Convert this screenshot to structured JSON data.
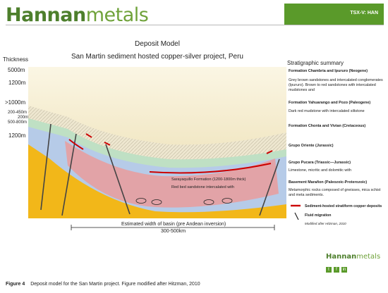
{
  "header": {
    "logo_part1": "Hannan",
    "logo_part2": "metals",
    "ticker": "TSX-V: HAN"
  },
  "titles": {
    "title": "Deposit Model",
    "subtitle": "San Martin sediment hosted copper-silver project, Peru"
  },
  "thickness": {
    "heading": "Thickness",
    "labels": [
      "5000m",
      "1200m",
      ">1000m",
      "200-450m",
      "200m",
      "500-800m",
      "1200m"
    ]
  },
  "strat": {
    "heading": "Stratigraphic summary",
    "units": [
      {
        "name": "Formation Chambria and Ipururo (Neogene)",
        "desc": "Grey brown sandstones and intercalated conglomerates (Ipururo). Brown to red sandstones with intercalated mudstones and"
      },
      {
        "name": "Formation Yahuarango and Pozo (Paleogene)",
        "desc": "Dark red mudstone with intercalated siltstone"
      },
      {
        "name": "Formation Chonta and Vivian (Cretaceous)",
        "desc": ""
      },
      {
        "name": "Grupo Oriente (Jurassic)",
        "desc": ""
      },
      {
        "name": "Grupo Pucara (Triassic—Jurassic)",
        "desc": "Limestone, micritic and dolomitic with"
      },
      {
        "name": "Basement Marañon (Paleozoic-Proterozoic)",
        "desc": "Metamorphic rocks composed of gneisses, mica schist and meta sediments."
      }
    ]
  },
  "section": {
    "sarayaquillo_title": "Sarayaquillo Formation (1200-1800m thick)",
    "sarayaquillo_desc": "Red bed sandstone intercalated with",
    "width_label": "Estimated width of basin (pre Andean inversion)",
    "range_label": "300-500km"
  },
  "legend": {
    "deposits": "Sediment-hosted stratiform copper deposits",
    "fluid": "Fluid migration",
    "credit": "Modified after Hitzman, 2010"
  },
  "footer": {
    "logo_part1": "Hannan",
    "logo_part2": "metals",
    "social": [
      "t",
      "f",
      "in"
    ],
    "figure_label": "Figure 4",
    "caption": "Deposit model for the San Martin project. Figure modified after Hitzman, 2010"
  },
  "colors": {
    "brand_green": "#5a9a2a",
    "neogene": "#f5eecb",
    "paleogene_hatch": "#d6cfb8",
    "cretaceous": "#bfe0c4",
    "jurassic_blue": "#b6cbe8",
    "sarayaquillo": "#e2a3a7",
    "basement": "#f2b719",
    "copper_deposit": "#cc0000"
  }
}
